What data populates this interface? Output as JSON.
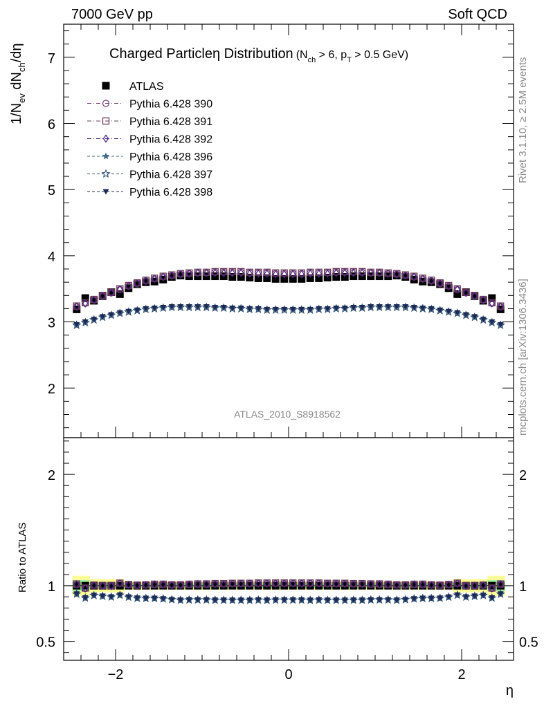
{
  "header": {
    "left": "7000 GeV pp",
    "right": "Soft QCD"
  },
  "side_labels": {
    "rivet": "Rivet 3.1.10, ≥ 2.5M events",
    "mcplots": "mcplots.cern.ch [arXiv:1306.3436]"
  },
  "title": {
    "main": "Charged Particleη Distribution",
    "sub_open": "(N",
    "sub_ch": "ch",
    "sub_mid": " > 6, p",
    "sub_T": "T",
    "sub_close": " > 0.5 GeV)"
  },
  "ylabel_top": {
    "a": "1/N",
    "ev": "ev",
    "b": " dN",
    "ch": "ch",
    "c": "/dη"
  },
  "ylabel_bottom": "Ratio to ATLAS",
  "xlabel": "η",
  "analysis_tag": "ATLAS_2010_S8918562",
  "chart_data": {
    "type": "scatter",
    "x": [
      -2.45,
      -2.35,
      -2.25,
      -2.15,
      -2.05,
      -1.95,
      -1.85,
      -1.75,
      -1.65,
      -1.55,
      -1.45,
      -1.35,
      -1.25,
      -1.15,
      -1.05,
      -0.95,
      -0.85,
      -0.75,
      -0.65,
      -0.55,
      -0.45,
      -0.35,
      -0.25,
      -0.15,
      -0.05,
      0.05,
      0.15,
      0.25,
      0.35,
      0.45,
      0.55,
      0.65,
      0.75,
      0.85,
      0.95,
      1.05,
      1.15,
      1.25,
      1.35,
      1.45,
      1.55,
      1.65,
      1.75,
      1.85,
      1.95,
      2.05,
      2.15,
      2.25,
      2.35,
      2.45
    ],
    "xlim": [
      -2.6,
      2.6
    ],
    "top_ylim": [
      1.25,
      7.5
    ],
    "bottom_ylim": [
      0.33,
      2.33
    ],
    "top_yticks": [
      2,
      3,
      4,
      5,
      6,
      7
    ],
    "bottom_yticks": [
      0.5,
      1,
      2
    ],
    "xticks": [
      -2,
      0,
      2
    ],
    "xtick_labels": [
      "−2",
      "0",
      "2"
    ],
    "top_ytick_labels": [
      "2",
      "3",
      "4",
      "5",
      "6",
      "7"
    ],
    "bottom_ytick_labels": [
      "0.5",
      "1",
      "2"
    ],
    "series": [
      {
        "name": "ATLAS",
        "marker": "square-filled",
        "color": "#000000",
        "values": [
          3.19,
          3.36,
          3.32,
          3.39,
          3.45,
          3.42,
          3.51,
          3.57,
          3.6,
          3.61,
          3.64,
          3.68,
          3.7,
          3.69,
          3.69,
          3.69,
          3.69,
          3.69,
          3.68,
          3.68,
          3.67,
          3.66,
          3.66,
          3.65,
          3.65,
          3.65,
          3.65,
          3.66,
          3.66,
          3.67,
          3.68,
          3.68,
          3.69,
          3.69,
          3.69,
          3.69,
          3.69,
          3.7,
          3.68,
          3.64,
          3.61,
          3.6,
          3.57,
          3.51,
          3.42,
          3.45,
          3.39,
          3.32,
          3.36,
          3.19
        ]
      },
      {
        "name": "Pythia 6.428 390",
        "marker": "circle-open",
        "color": "#7a3d7a",
        "values": [
          3.23,
          3.28,
          3.33,
          3.39,
          3.44,
          3.49,
          3.54,
          3.58,
          3.62,
          3.65,
          3.68,
          3.7,
          3.72,
          3.73,
          3.74,
          3.74,
          3.75,
          3.75,
          3.75,
          3.75,
          3.74,
          3.74,
          3.74,
          3.73,
          3.73,
          3.73,
          3.73,
          3.74,
          3.74,
          3.74,
          3.75,
          3.75,
          3.75,
          3.75,
          3.74,
          3.74,
          3.73,
          3.72,
          3.7,
          3.68,
          3.65,
          3.62,
          3.58,
          3.54,
          3.49,
          3.44,
          3.39,
          3.33,
          3.28,
          3.23
        ]
      },
      {
        "name": "Pythia 6.428 391",
        "marker": "square-open",
        "color": "#6b3a55",
        "values": [
          3.24,
          3.29,
          3.34,
          3.4,
          3.45,
          3.5,
          3.55,
          3.59,
          3.63,
          3.66,
          3.69,
          3.71,
          3.73,
          3.74,
          3.75,
          3.75,
          3.76,
          3.76,
          3.76,
          3.76,
          3.75,
          3.75,
          3.75,
          3.74,
          3.74,
          3.74,
          3.74,
          3.75,
          3.75,
          3.75,
          3.76,
          3.76,
          3.76,
          3.76,
          3.75,
          3.75,
          3.74,
          3.73,
          3.71,
          3.69,
          3.66,
          3.63,
          3.59,
          3.55,
          3.5,
          3.45,
          3.4,
          3.34,
          3.29,
          3.24
        ]
      },
      {
        "name": "Pythia 6.428 392",
        "marker": "diamond-open",
        "color": "#4b2a80",
        "values": [
          3.23,
          3.28,
          3.33,
          3.39,
          3.44,
          3.49,
          3.54,
          3.58,
          3.62,
          3.65,
          3.68,
          3.7,
          3.72,
          3.73,
          3.74,
          3.74,
          3.74,
          3.74,
          3.74,
          3.74,
          3.73,
          3.73,
          3.73,
          3.72,
          3.72,
          3.72,
          3.72,
          3.73,
          3.73,
          3.73,
          3.74,
          3.74,
          3.74,
          3.74,
          3.74,
          3.74,
          3.73,
          3.72,
          3.7,
          3.68,
          3.65,
          3.62,
          3.58,
          3.54,
          3.49,
          3.44,
          3.39,
          3.33,
          3.28,
          3.23
        ]
      },
      {
        "name": "Pythia 6.428 396",
        "marker": "star-filled",
        "color": "#3d6a85",
        "values": [
          2.96,
          3.0,
          3.04,
          3.08,
          3.11,
          3.14,
          3.16,
          3.18,
          3.2,
          3.21,
          3.22,
          3.23,
          3.23,
          3.23,
          3.23,
          3.23,
          3.22,
          3.22,
          3.21,
          3.21,
          3.2,
          3.2,
          3.19,
          3.19,
          3.19,
          3.19,
          3.19,
          3.19,
          3.2,
          3.2,
          3.21,
          3.21,
          3.22,
          3.22,
          3.23,
          3.23,
          3.23,
          3.23,
          3.23,
          3.22,
          3.21,
          3.2,
          3.18,
          3.16,
          3.14,
          3.11,
          3.08,
          3.04,
          3.0,
          2.96
        ]
      },
      {
        "name": "Pythia 6.428 397",
        "marker": "star-open",
        "color": "#2f4f75",
        "values": [
          2.95,
          2.99,
          3.03,
          3.07,
          3.1,
          3.13,
          3.15,
          3.17,
          3.19,
          3.2,
          3.21,
          3.22,
          3.22,
          3.22,
          3.22,
          3.22,
          3.21,
          3.21,
          3.2,
          3.2,
          3.19,
          3.19,
          3.18,
          3.18,
          3.18,
          3.18,
          3.18,
          3.18,
          3.19,
          3.19,
          3.2,
          3.2,
          3.21,
          3.21,
          3.22,
          3.22,
          3.22,
          3.22,
          3.22,
          3.21,
          3.2,
          3.19,
          3.17,
          3.15,
          3.13,
          3.1,
          3.07,
          3.03,
          2.99,
          2.95
        ]
      },
      {
        "name": "Pythia 6.428 398",
        "marker": "triangle-down-filled",
        "color": "#1c2b55",
        "values": [
          2.96,
          3.0,
          3.04,
          3.08,
          3.11,
          3.14,
          3.16,
          3.18,
          3.2,
          3.21,
          3.22,
          3.23,
          3.23,
          3.23,
          3.23,
          3.23,
          3.22,
          3.22,
          3.21,
          3.21,
          3.2,
          3.2,
          3.19,
          3.19,
          3.19,
          3.19,
          3.19,
          3.19,
          3.2,
          3.2,
          3.21,
          3.21,
          3.22,
          3.22,
          3.23,
          3.23,
          3.23,
          3.23,
          3.23,
          3.22,
          3.21,
          3.2,
          3.18,
          3.16,
          3.14,
          3.11,
          3.08,
          3.04,
          3.0,
          2.96
        ]
      }
    ],
    "ratio_band": {
      "inner_halfwidth": [
        0.05,
        0.05,
        0.025,
        0.025,
        0.025,
        0.025,
        0.02,
        0.02,
        0.02,
        0.02,
        0.02,
        0.02,
        0.02,
        0.02,
        0.02,
        0.02,
        0.02,
        0.02,
        0.02,
        0.02,
        0.02,
        0.02,
        0.02,
        0.02,
        0.02,
        0.02,
        0.02,
        0.02,
        0.02,
        0.02,
        0.02,
        0.02,
        0.02,
        0.02,
        0.02,
        0.02,
        0.02,
        0.02,
        0.02,
        0.02,
        0.02,
        0.02,
        0.02,
        0.02,
        0.025,
        0.025,
        0.025,
        0.025,
        0.05,
        0.05
      ],
      "outer_halfwidth": [
        0.09,
        0.09,
        0.06,
        0.06,
        0.06,
        0.06,
        0.035,
        0.035,
        0.035,
        0.035,
        0.035,
        0.035,
        0.035,
        0.035,
        0.035,
        0.035,
        0.035,
        0.035,
        0.035,
        0.035,
        0.035,
        0.035,
        0.035,
        0.035,
        0.035,
        0.035,
        0.035,
        0.035,
        0.035,
        0.035,
        0.035,
        0.035,
        0.035,
        0.035,
        0.035,
        0.035,
        0.035,
        0.035,
        0.035,
        0.035,
        0.035,
        0.035,
        0.035,
        0.035,
        0.06,
        0.06,
        0.06,
        0.06,
        0.09,
        0.09
      ],
      "inner_color": "#9fee9f",
      "outer_color": "#ffff99"
    }
  }
}
